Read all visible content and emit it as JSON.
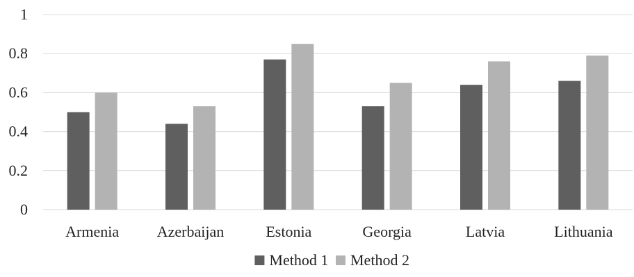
{
  "chart_data": {
    "type": "bar",
    "title": "",
    "xlabel": "",
    "ylabel": "",
    "categories": [
      "Armenia",
      "Azerbaijan",
      "Estonia",
      "Georgia",
      "Latvia",
      "Lithuania"
    ],
    "series": [
      {
        "name": "Method 1",
        "color": "#5f5f5f",
        "values": [
          0.5,
          0.44,
          0.77,
          0.53,
          0.64,
          0.66
        ]
      },
      {
        "name": "Method 2",
        "color": "#b3b3b3",
        "values": [
          0.6,
          0.53,
          0.85,
          0.65,
          0.76,
          0.79
        ]
      }
    ],
    "ylim": [
      0,
      1
    ],
    "yticks": [
      "0",
      "0.2",
      "0.4",
      "0.6",
      "0.8",
      "1"
    ],
    "grid": true,
    "legend_position": "bottom"
  }
}
